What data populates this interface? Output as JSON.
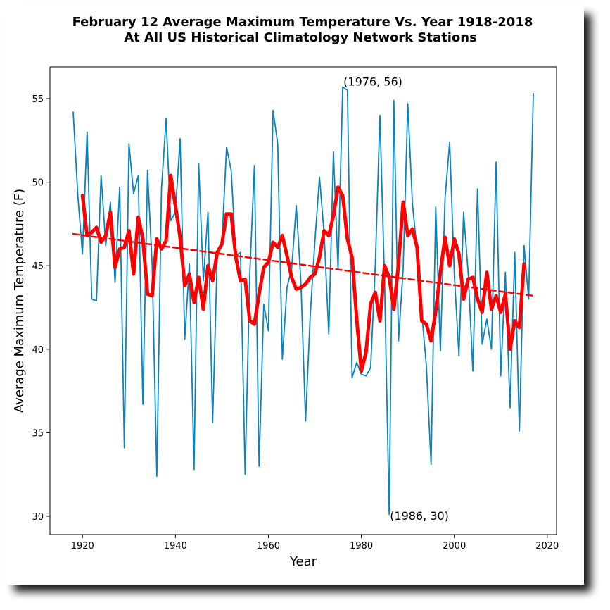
{
  "chart_data": {
    "type": "line",
    "title": "February 12 Average Maximum Temperature Vs. Year 1918-2018",
    "subtitle": "At All US Historical Climatology Network Stations",
    "xlabel": "Year",
    "ylabel": "Average Maximum Temperature (F)",
    "xlim": [
      1913,
      2022
    ],
    "ylim": [
      28.9,
      56.9
    ],
    "xticks": [
      1920,
      1940,
      1960,
      1980,
      2000,
      2020
    ],
    "yticks": [
      30,
      35,
      40,
      45,
      50,
      55
    ],
    "grid": false,
    "colors": {
      "raw": "#0a84c0",
      "smooth": "#ff0000",
      "trend": "#ff0000"
    },
    "series": [
      {
        "style": "thin-line",
        "x": [
          1918,
          1919,
          1920,
          1921,
          1922,
          1923,
          1924,
          1925,
          1926,
          1927,
          1928,
          1929,
          1930,
          1931,
          1932,
          1933,
          1934,
          1935,
          1936,
          1937,
          1938,
          1939,
          1940,
          1941,
          1942,
          1943,
          1944,
          1945,
          1946,
          1947,
          1948,
          1949,
          1950,
          1951,
          1952,
          1953,
          1954,
          1955,
          1956,
          1957,
          1958,
          1959,
          1960,
          1961,
          1962,
          1963,
          1964,
          1965,
          1966,
          1967,
          1968,
          1969,
          1970,
          1971,
          1972,
          1973,
          1974,
          1975,
          1976,
          1977,
          1978,
          1979,
          1980,
          1981,
          1982,
          1983,
          1984,
          1985,
          1986,
          1987,
          1988,
          1989,
          1990,
          1991,
          1992,
          1993,
          1994,
          1995,
          1996,
          1997,
          1998,
          1999,
          2000,
          2001,
          2002,
          2003,
          2004,
          2005,
          2006,
          2007,
          2008,
          2009,
          2010,
          2011,
          2012,
          2013,
          2014,
          2015,
          2016,
          2017
        ],
        "y": [
          54.2,
          49.2,
          45.7,
          53.0,
          43.0,
          42.9,
          50.4,
          46.2,
          48.8,
          44.0,
          49.7,
          34.1,
          52.3,
          49.3,
          50.4,
          36.7,
          50.7,
          45.0,
          32.4,
          49.6,
          53.8,
          47.7,
          48.2,
          52.6,
          40.6,
          45.1,
          32.8,
          51.1,
          44.1,
          48.2,
          35.6,
          45.6,
          46.4,
          52.1,
          50.7,
          45.6,
          45.8,
          32.5,
          44.5,
          51.0,
          33.0,
          42.7,
          41.1,
          54.3,
          52.3,
          39.4,
          43.7,
          44.8,
          48.6,
          44.0,
          35.7,
          42.0,
          46.4,
          50.3,
          46.9,
          40.9,
          51.8,
          44.8,
          55.7,
          55.5,
          38.3,
          39.2,
          38.5,
          38.4,
          38.9,
          45.0,
          54.0,
          44.0,
          30.1,
          54.9,
          40.5,
          44.8,
          54.7,
          48.7,
          45.9,
          42.2,
          39.0,
          33.1,
          48.5,
          39.9,
          49.0,
          52.4,
          44.5,
          39.6,
          48.2,
          44.5,
          38.7,
          49.6,
          40.3,
          41.8,
          40.0,
          51.2,
          38.4,
          44.6,
          36.5,
          45.8,
          35.1,
          46.2,
          43.0,
          55.3
        ]
      },
      {
        "style": "thick-smoothed",
        "x": [
          1920,
          1921,
          1922,
          1923,
          1924,
          1925,
          1926,
          1927,
          1928,
          1929,
          1930,
          1931,
          1932,
          1933,
          1934,
          1935,
          1936,
          1937,
          1938,
          1939,
          1940,
          1941,
          1942,
          1943,
          1944,
          1945,
          1946,
          1947,
          1948,
          1949,
          1950,
          1951,
          1952,
          1953,
          1954,
          1955,
          1956,
          1957,
          1958,
          1959,
          1960,
          1961,
          1962,
          1963,
          1964,
          1965,
          1966,
          1967,
          1968,
          1969,
          1970,
          1971,
          1972,
          1973,
          1974,
          1975,
          1976,
          1977,
          1978,
          1979,
          1980,
          1981,
          1982,
          1983,
          1984,
          1985,
          1986,
          1987,
          1988,
          1989,
          1990,
          1991,
          1992,
          1993,
          1994,
          1995,
          1996,
          1997,
          1998,
          1999,
          2000,
          2001,
          2002,
          2003,
          2004,
          2005,
          2006,
          2007,
          2008,
          2009,
          2010,
          2011,
          2012,
          2013,
          2014,
          2015
        ],
        "y": [
          49.2,
          46.8,
          47.0,
          47.3,
          46.4,
          46.8,
          48.2,
          44.9,
          46.0,
          46.1,
          47.1,
          44.5,
          47.9,
          46.6,
          43.3,
          43.2,
          46.6,
          46.0,
          46.5,
          50.4,
          48.6,
          46.7,
          43.8,
          44.5,
          42.8,
          44.3,
          42.4,
          45.0,
          44.1,
          45.8,
          46.3,
          48.1,
          48.1,
          45.5,
          44.1,
          44.2,
          41.7,
          41.5,
          43.3,
          44.9,
          45.2,
          46.4,
          46.1,
          46.8,
          45.6,
          44.3,
          43.6,
          43.7,
          43.9,
          44.3,
          44.5,
          45.5,
          47.1,
          46.8,
          48.0,
          49.7,
          49.2,
          46.6,
          45.5,
          41.8,
          38.7,
          39.8,
          42.7,
          43.4,
          41.7,
          45.0,
          44.3,
          42.4,
          45.1,
          48.8,
          46.8,
          47.2,
          46.1,
          41.7,
          41.5,
          40.5,
          42.3,
          44.6,
          46.7,
          45.0,
          46.6,
          45.7,
          43.0,
          44.2,
          44.3,
          43.0,
          42.2,
          44.6,
          42.4,
          43.2,
          42.2,
          43.3,
          40.0,
          41.7,
          41.3,
          45.1
        ]
      },
      {
        "style": "dashed-trend",
        "x": [
          1918,
          2017
        ],
        "y": [
          46.9,
          43.2
        ]
      }
    ],
    "annotations": [
      {
        "text": "(1976, 56)",
        "x": 1976,
        "y": 56
      },
      {
        "text": "(1986, 30)",
        "x": 1986,
        "y": 30
      }
    ]
  }
}
